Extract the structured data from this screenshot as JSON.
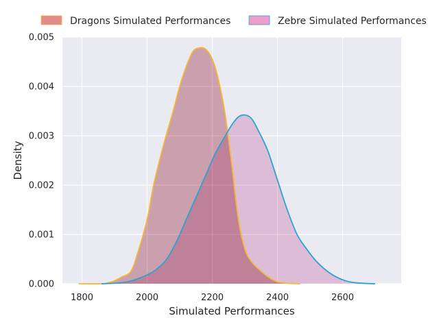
{
  "chart_data": {
    "type": "area",
    "title": "",
    "xlabel": "Simulated Performances",
    "ylabel": "Density",
    "xlim": [
      1740,
      2780
    ],
    "ylim": [
      0,
      0.005
    ],
    "xticks": [
      1800,
      2000,
      2200,
      2400,
      2600
    ],
    "yticks": [
      0.0,
      0.001,
      0.002,
      0.003,
      0.004,
      0.005
    ],
    "xtick_labels": [
      "1800",
      "2000",
      "2200",
      "2400",
      "2600"
    ],
    "ytick_labels": [
      "0.000",
      "0.001",
      "0.002",
      "0.003",
      "0.004",
      "0.005"
    ],
    "grid": true,
    "legend_placement": "top-center",
    "series": [
      {
        "name": "Dragons Simulated Performances",
        "fill": "#d8a0ac",
        "line": "#f5b731",
        "legend_swatch": "#e08c8c",
        "points": [
          [
            1790,
            0.0
          ],
          [
            1860,
            0.0
          ],
          [
            1880,
            2e-05
          ],
          [
            1900,
            6e-05
          ],
          [
            1920,
            0.00013
          ],
          [
            1950,
            0.00025
          ],
          [
            1970,
            0.0006
          ],
          [
            2000,
            0.0013
          ],
          [
            2020,
            0.002
          ],
          [
            2050,
            0.0028
          ],
          [
            2080,
            0.0035
          ],
          [
            2100,
            0.004
          ],
          [
            2120,
            0.0044
          ],
          [
            2140,
            0.0047
          ],
          [
            2160,
            0.00478
          ],
          [
            2180,
            0.00475
          ],
          [
            2200,
            0.00455
          ],
          [
            2220,
            0.0041
          ],
          [
            2240,
            0.0034
          ],
          [
            2260,
            0.0024
          ],
          [
            2280,
            0.0013
          ],
          [
            2300,
            0.0007
          ],
          [
            2320,
            0.00045
          ],
          [
            2350,
            0.00025
          ],
          [
            2380,
            0.0001
          ],
          [
            2400,
            4e-05
          ],
          [
            2430,
            1e-05
          ],
          [
            2470,
            0.0
          ]
        ]
      },
      {
        "name": "Zebre Simulated Performances",
        "fill": "#ebbcd8",
        "line": "#2ba3cf",
        "legend_swatch": "#eb9cc9",
        "points": [
          [
            1860,
            0.0
          ],
          [
            1900,
            1e-05
          ],
          [
            1940,
            4e-05
          ],
          [
            1970,
            0.0001
          ],
          [
            2000,
            0.00018
          ],
          [
            2030,
            0.0003
          ],
          [
            2060,
            0.0005
          ],
          [
            2090,
            0.00085
          ],
          [
            2120,
            0.0013
          ],
          [
            2150,
            0.00175
          ],
          [
            2180,
            0.0022
          ],
          [
            2210,
            0.00265
          ],
          [
            2240,
            0.003
          ],
          [
            2260,
            0.00322
          ],
          [
            2280,
            0.00338
          ],
          [
            2300,
            0.00342
          ],
          [
            2320,
            0.00335
          ],
          [
            2340,
            0.00312
          ],
          [
            2370,
            0.0027
          ],
          [
            2400,
            0.0021
          ],
          [
            2430,
            0.0015
          ],
          [
            2460,
            0.001
          ],
          [
            2490,
            0.0007
          ],
          [
            2520,
            0.00045
          ],
          [
            2560,
            0.00022
          ],
          [
            2600,
            8e-05
          ],
          [
            2640,
            2e-05
          ],
          [
            2700,
            0.0
          ]
        ]
      }
    ]
  }
}
